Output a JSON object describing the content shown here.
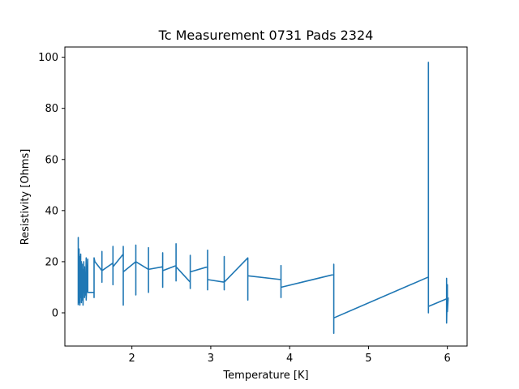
{
  "chart_data": {
    "type": "line",
    "title": "Tc Measurement 0731 Pads 2324",
    "xlabel": "Temperature [K]",
    "ylabel": "Resistivity [Ohms]",
    "xlim": [
      1.15,
      6.25
    ],
    "ylim": [
      -13,
      104
    ],
    "xticks": [
      2,
      3,
      4,
      5,
      6
    ],
    "yticks": [
      0,
      20,
      40,
      60,
      80,
      100
    ],
    "grid": false,
    "series": [
      {
        "name": "",
        "color": "#1f77b4",
        "points": [
          [
            1.32,
            3
          ],
          [
            1.32,
            29.5
          ],
          [
            1.32,
            5
          ],
          [
            1.33,
            25
          ],
          [
            1.33,
            4
          ],
          [
            1.34,
            22
          ],
          [
            1.34,
            3
          ],
          [
            1.35,
            23
          ],
          [
            1.35,
            6
          ],
          [
            1.36,
            20
          ],
          [
            1.36,
            4
          ],
          [
            1.37,
            19
          ],
          [
            1.37,
            5
          ],
          [
            1.38,
            17
          ],
          [
            1.38,
            3
          ],
          [
            1.39,
            20
          ],
          [
            1.39,
            8
          ],
          [
            1.4,
            18
          ],
          [
            1.4,
            6
          ],
          [
            1.41,
            14
          ],
          [
            1.41,
            7
          ],
          [
            1.42,
            21.5
          ],
          [
            1.42,
            5
          ],
          [
            1.44,
            21
          ],
          [
            1.44,
            8
          ],
          [
            1.45,
            8
          ],
          [
            1.52,
            8
          ],
          [
            1.52,
            6
          ],
          [
            1.52,
            21.5
          ],
          [
            1.53,
            20
          ],
          [
            1.62,
            16.5
          ],
          [
            1.62,
            12
          ],
          [
            1.62,
            24
          ],
          [
            1.62,
            16.5
          ],
          [
            1.76,
            19.5
          ],
          [
            1.76,
            11
          ],
          [
            1.76,
            26
          ],
          [
            1.76,
            18
          ],
          [
            1.89,
            23
          ],
          [
            1.89,
            3
          ],
          [
            1.89,
            26
          ],
          [
            1.89,
            16
          ],
          [
            2.05,
            20
          ],
          [
            2.05,
            7
          ],
          [
            2.05,
            26.5
          ],
          [
            2.05,
            20
          ],
          [
            2.21,
            17
          ],
          [
            2.21,
            8
          ],
          [
            2.21,
            25.5
          ],
          [
            2.21,
            17
          ],
          [
            2.39,
            18
          ],
          [
            2.39,
            10
          ],
          [
            2.39,
            23.5
          ],
          [
            2.39,
            16.5
          ],
          [
            2.56,
            18.5
          ],
          [
            2.56,
            12.5
          ],
          [
            2.56,
            27
          ],
          [
            2.56,
            18
          ],
          [
            2.74,
            12
          ],
          [
            2.74,
            9.5
          ],
          [
            2.74,
            22.5
          ],
          [
            2.74,
            16
          ],
          [
            2.96,
            18
          ],
          [
            2.96,
            9
          ],
          [
            2.96,
            24.5
          ],
          [
            2.96,
            13
          ],
          [
            3.17,
            12
          ],
          [
            3.17,
            9
          ],
          [
            3.17,
            22
          ],
          [
            3.17,
            12
          ],
          [
            3.47,
            21.5
          ],
          [
            3.47,
            5
          ],
          [
            3.47,
            14.5
          ],
          [
            3.89,
            13
          ],
          [
            3.89,
            6
          ],
          [
            3.89,
            18.5
          ],
          [
            3.89,
            10
          ],
          [
            4.56,
            15
          ],
          [
            4.56,
            -8
          ],
          [
            4.56,
            19
          ],
          [
            4.56,
            -2
          ],
          [
            5.76,
            14
          ],
          [
            5.76,
            0
          ],
          [
            5.76,
            98
          ],
          [
            5.76,
            2.5
          ],
          [
            5.99,
            5.5
          ],
          [
            5.99,
            13.5
          ],
          [
            5.99,
            -4
          ],
          [
            6.0,
            11
          ],
          [
            6.0,
            0.5
          ],
          [
            6.01,
            6
          ]
        ]
      }
    ]
  }
}
